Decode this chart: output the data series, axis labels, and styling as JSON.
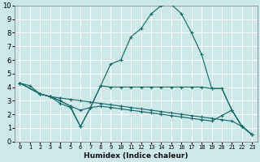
{
  "xlabel": "Humidex (Indice chaleur)",
  "background_color": "#cce8e8",
  "grid_color": "#ffffff",
  "line_color": "#1a6b6b",
  "xlim": [
    -0.5,
    23.5
  ],
  "ylim": [
    0,
    10
  ],
  "xticks": [
    0,
    1,
    2,
    3,
    4,
    5,
    6,
    7,
    8,
    9,
    10,
    11,
    12,
    13,
    14,
    15,
    16,
    17,
    18,
    19,
    20,
    21,
    22,
    23
  ],
  "yticks": [
    0,
    1,
    2,
    3,
    4,
    5,
    6,
    7,
    8,
    9,
    10
  ],
  "series": [
    {
      "x": [
        0,
        1,
        2,
        3,
        4,
        5,
        6,
        7,
        8,
        9,
        10,
        11,
        12,
        13,
        14,
        15,
        16,
        17,
        18,
        19,
        20,
        21,
        22,
        23
      ],
      "y": [
        4.3,
        4.1,
        3.5,
        3.3,
        3.0,
        2.6,
        2.3,
        2.5,
        4.1,
        5.7,
        6.0,
        7.7,
        8.3,
        9.4,
        10.0,
        10.1,
        9.4,
        8.0,
        6.4,
        3.9,
        3.9,
        2.3,
        1.1,
        0.5
      ]
    },
    {
      "x": [
        0,
        2,
        3,
        4,
        5,
        6,
        7,
        8,
        9,
        10,
        11,
        12,
        13,
        14,
        15,
        16,
        17,
        18,
        19,
        20,
        21,
        22,
        23
      ],
      "y": [
        4.3,
        3.5,
        3.3,
        3.2,
        3.1,
        3.0,
        2.9,
        2.8,
        2.7,
        2.6,
        2.5,
        2.4,
        2.3,
        2.2,
        2.1,
        2.0,
        1.9,
        1.8,
        1.7,
        1.6,
        1.5,
        1.1,
        0.5
      ]
    },
    {
      "x": [
        0,
        2,
        3,
        4,
        5,
        6,
        7,
        8,
        9,
        10,
        11,
        12,
        13,
        14,
        15,
        16,
        17,
        18,
        19,
        20,
        21,
        22,
        23
      ],
      "y": [
        4.3,
        3.5,
        3.3,
        3.0,
        2.6,
        1.1,
        2.5,
        4.1,
        4.0,
        4.0,
        4.0,
        4.0,
        4.0,
        4.0,
        4.0,
        4.0,
        4.0,
        4.0,
        3.9,
        3.9,
        2.3,
        1.1,
        0.5
      ]
    },
    {
      "x": [
        0,
        2,
        3,
        4,
        5,
        6,
        7,
        8,
        9,
        10,
        11,
        12,
        13,
        14,
        15,
        16,
        17,
        18,
        19,
        20,
        21,
        22,
        23
      ],
      "y": [
        4.3,
        3.5,
        3.3,
        2.8,
        2.5,
        1.1,
        2.5,
        2.6,
        2.5,
        2.4,
        2.3,
        2.2,
        2.1,
        2.0,
        1.9,
        1.8,
        1.7,
        1.6,
        1.5,
        1.9,
        2.3,
        1.1,
        0.5
      ]
    }
  ]
}
